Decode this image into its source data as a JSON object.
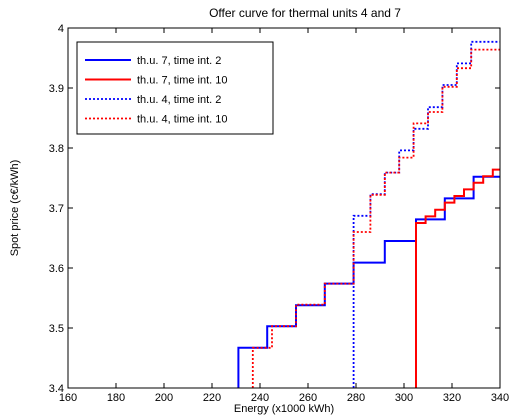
{
  "chart_data": {
    "type": "line",
    "step": true,
    "title": "Offer curve for thermal units 4 and 7",
    "xlabel": "Energy (x1000 kWh)",
    "ylabel": "Spot price (c€/kWh)",
    "xlim": [
      160,
      340
    ],
    "ylim": [
      3.4,
      4.0
    ],
    "xticks": [
      "160",
      "180",
      "200",
      "220",
      "240",
      "260",
      "280",
      "300",
      "320",
      "340"
    ],
    "yticks": [
      "3.4",
      "3.5",
      "3.6",
      "3.7",
      "3.8",
      "3.9",
      "4"
    ],
    "grid": false,
    "legend_position": "top-left",
    "series": [
      {
        "name": "th.u. 7, time int. 2",
        "color": "#0000ff",
        "style": "solid",
        "points": [
          [
            231,
            3.4
          ],
          [
            231,
            3.467
          ],
          [
            243,
            3.467
          ],
          [
            243,
            3.503
          ],
          [
            255,
            3.503
          ],
          [
            255,
            3.538
          ],
          [
            267,
            3.538
          ],
          [
            267,
            3.574
          ],
          [
            279,
            3.574
          ],
          [
            279,
            3.609
          ],
          [
            292,
            3.609
          ],
          [
            292,
            3.645
          ],
          [
            305,
            3.645
          ],
          [
            305,
            3.681
          ],
          [
            317,
            3.681
          ],
          [
            317,
            3.716
          ],
          [
            329,
            3.716
          ],
          [
            329,
            3.752
          ],
          [
            340,
            3.752
          ]
        ]
      },
      {
        "name": "th.u. 7, time int. 10",
        "color": "#ff0000",
        "style": "solid",
        "points": [
          [
            305,
            3.4
          ],
          [
            305,
            3.675
          ],
          [
            309,
            3.675
          ],
          [
            309,
            3.686
          ],
          [
            313,
            3.686
          ],
          [
            313,
            3.697
          ],
          [
            317,
            3.697
          ],
          [
            317,
            3.709
          ],
          [
            321,
            3.709
          ],
          [
            321,
            3.72
          ],
          [
            325,
            3.72
          ],
          [
            325,
            3.731
          ],
          [
            329,
            3.731
          ],
          [
            329,
            3.742
          ],
          [
            333,
            3.742
          ],
          [
            333,
            3.753
          ],
          [
            337,
            3.753
          ],
          [
            337,
            3.764
          ],
          [
            340,
            3.764
          ]
        ]
      },
      {
        "name": "th.u. 4, time int. 2",
        "color": "#0000ff",
        "style": "dotted",
        "points": [
          [
            279,
            3.4
          ],
          [
            279,
            3.687
          ],
          [
            286,
            3.687
          ],
          [
            286,
            3.723
          ],
          [
            292,
            3.723
          ],
          [
            292,
            3.759
          ],
          [
            298,
            3.759
          ],
          [
            298,
            3.796
          ],
          [
            304,
            3.796
          ],
          [
            304,
            3.832
          ],
          [
            310,
            3.832
          ],
          [
            310,
            3.868
          ],
          [
            316,
            3.868
          ],
          [
            316,
            3.905
          ],
          [
            322,
            3.905
          ],
          [
            322,
            3.941
          ],
          [
            328,
            3.941
          ],
          [
            328,
            3.977
          ],
          [
            335,
            3.977
          ],
          [
            335,
            3.977
          ],
          [
            340,
            3.977
          ]
        ]
      },
      {
        "name": "th.u. 4, time int. 10",
        "color": "#ff0000",
        "style": "dotted",
        "points": [
          [
            237,
            3.4
          ],
          [
            237,
            3.467
          ],
          [
            245,
            3.467
          ],
          [
            245,
            3.503
          ],
          [
            255,
            3.503
          ],
          [
            255,
            3.539
          ],
          [
            267,
            3.539
          ],
          [
            267,
            3.574
          ],
          [
            279,
            3.574
          ],
          [
            279,
            3.61
          ],
          [
            279,
            3.61
          ],
          [
            279,
            3.66
          ],
          [
            286,
            3.66
          ],
          [
            286,
            3.722
          ],
          [
            292,
            3.722
          ],
          [
            292,
            3.759
          ],
          [
            298,
            3.759
          ],
          [
            298,
            3.784
          ],
          [
            304,
            3.784
          ],
          [
            304,
            3.841
          ],
          [
            310,
            3.841
          ],
          [
            310,
            3.86
          ],
          [
            316,
            3.86
          ],
          [
            316,
            3.902
          ],
          [
            322,
            3.902
          ],
          [
            322,
            3.933
          ],
          [
            328,
            3.933
          ],
          [
            328,
            3.964
          ],
          [
            340,
            3.964
          ]
        ]
      }
    ]
  }
}
